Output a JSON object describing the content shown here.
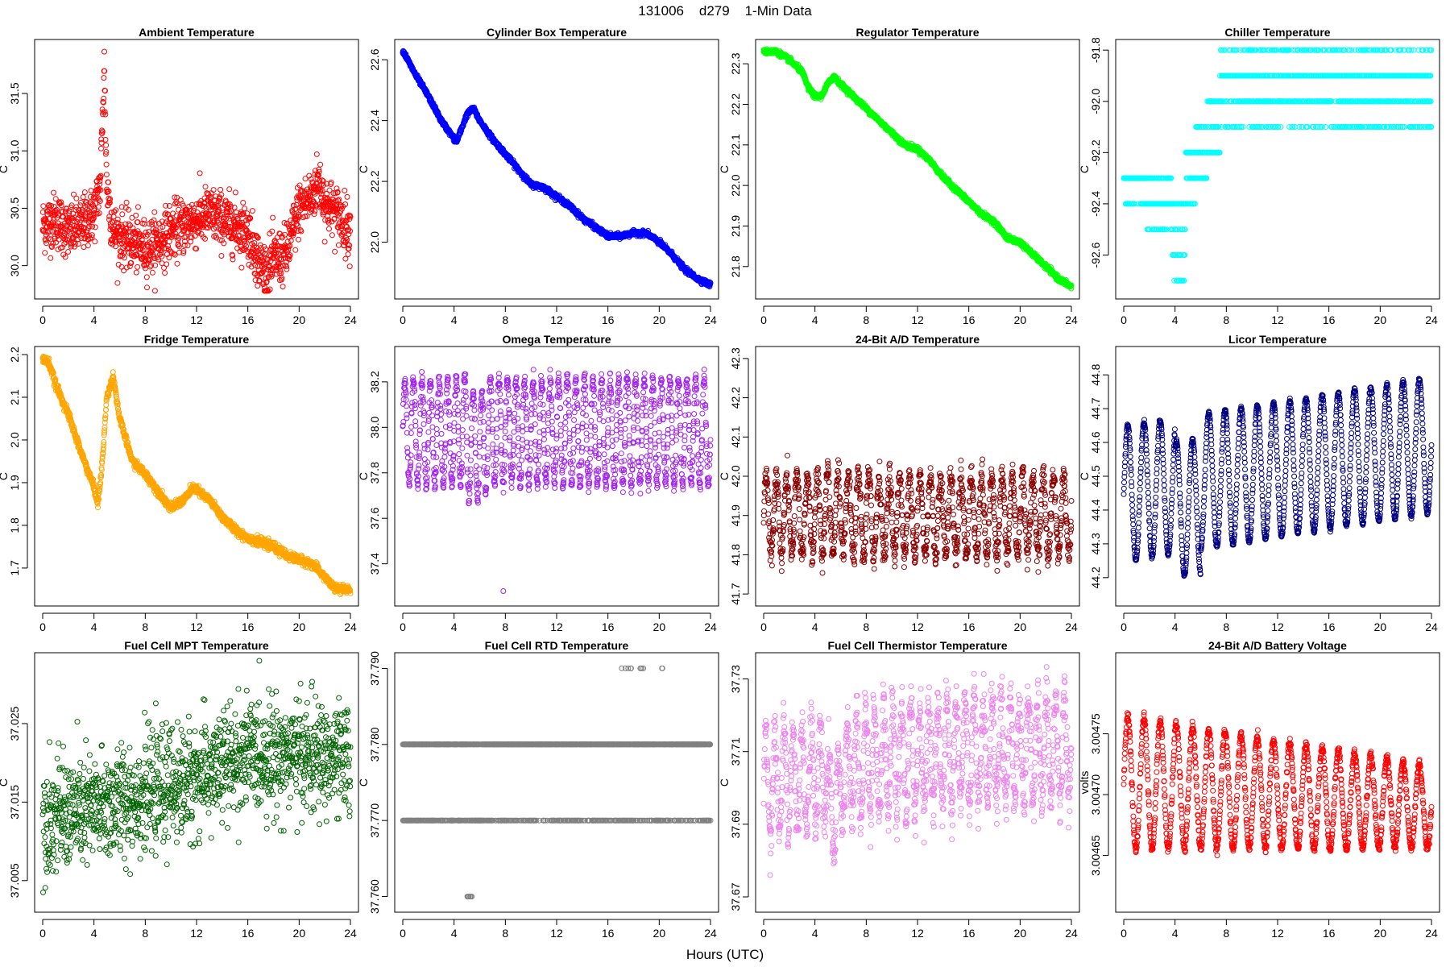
{
  "figure": {
    "title": "131006    d279    1-Min Data",
    "xlabel": "Hours (UTC)",
    "xticks": [
      0,
      4,
      8,
      12,
      16,
      20,
      24
    ],
    "xlim": [
      0,
      24
    ]
  },
  "chart_data": [
    {
      "type": "scatter",
      "title": "Ambient Temperature",
      "ylabel": "C",
      "color": "#ff0000",
      "ylim": [
        29.78,
        31.9
      ],
      "yticks": [
        30.0,
        30.5,
        31.0,
        31.5
      ],
      "ytick_labels": [
        "30.0",
        "30.5",
        "31.0",
        "31.5"
      ],
      "npoints": 1440,
      "x": [
        0,
        1,
        2,
        3,
        4,
        4.5,
        4.8,
        5,
        5.5,
        6,
        7,
        8,
        9,
        10,
        11,
        12,
        13,
        14,
        15,
        16,
        17,
        17.5,
        18,
        19,
        20,
        21,
        21.5,
        22,
        23,
        24
      ],
      "y": [
        30.35,
        30.4,
        30.3,
        30.35,
        30.45,
        30.7,
        31.75,
        30.7,
        30.3,
        30.25,
        30.2,
        30.15,
        30.2,
        30.3,
        30.35,
        30.4,
        30.45,
        30.4,
        30.35,
        30.3,
        30.0,
        29.95,
        30.05,
        30.1,
        30.5,
        30.6,
        30.75,
        30.55,
        30.45,
        30.3
      ],
      "noise": 0.12
    },
    {
      "type": "scatter",
      "title": "Cylinder Box Temperature",
      "ylabel": "C",
      "color": "#0000ff",
      "ylim": [
        21.84,
        22.64
      ],
      "yticks": [
        22.0,
        22.2,
        22.4,
        22.6
      ],
      "ytick_labels": [
        "22.0",
        "22.2",
        "22.4",
        "22.6"
      ],
      "npoints": 1440,
      "x": [
        0,
        1,
        2,
        3,
        4,
        4.2,
        5,
        5.5,
        6,
        7,
        8,
        9,
        10,
        11,
        12,
        13,
        14,
        15,
        16,
        17,
        18,
        19,
        20,
        21,
        22,
        23,
        24
      ],
      "y": [
        22.63,
        22.55,
        22.48,
        22.4,
        22.34,
        22.33,
        22.42,
        22.44,
        22.4,
        22.34,
        22.29,
        22.24,
        22.19,
        22.18,
        22.15,
        22.12,
        22.08,
        22.05,
        22.02,
        22.02,
        22.03,
        22.03,
        22.0,
        21.96,
        21.91,
        21.88,
        21.86
      ],
      "noise": 0.004
    },
    {
      "type": "scatter",
      "title": "Regulator Temperature",
      "ylabel": "C",
      "color": "#00ff00",
      "ylim": [
        21.74,
        22.34
      ],
      "yticks": [
        21.8,
        21.9,
        22.0,
        22.1,
        22.2,
        22.3
      ],
      "ytick_labels": [
        "21.8",
        "21.9",
        "22.0",
        "22.1",
        "22.2",
        "22.3"
      ],
      "npoints": 1440,
      "x": [
        0,
        1,
        2,
        3,
        3.5,
        4,
        4.5,
        5,
        5.5,
        6,
        7,
        8,
        9,
        10,
        11,
        12,
        13,
        14,
        15,
        16,
        17,
        18,
        19,
        20,
        21,
        22,
        23,
        24
      ],
      "y": [
        22.33,
        22.33,
        22.31,
        22.28,
        22.24,
        22.22,
        22.22,
        22.25,
        22.27,
        22.25,
        22.22,
        22.19,
        22.16,
        22.13,
        22.1,
        22.09,
        22.06,
        22.02,
        21.99,
        21.96,
        21.93,
        21.91,
        21.87,
        21.86,
        21.83,
        21.8,
        21.77,
        21.75
      ],
      "noise": 0.003
    },
    {
      "type": "scatter",
      "title": "Chiller Temperature",
      "ylabel": "C",
      "color": "#00ffff",
      "ylim": [
        -92.74,
        -91.79
      ],
      "yticks": [
        -92.6,
        -92.4,
        -92.2,
        -92.0,
        -91.8
      ],
      "ytick_labels": [
        "-92.6",
        "-92.4",
        "-92.2",
        "-92.0",
        "-91.8"
      ],
      "npoints": 1440,
      "levels": [
        {
          "from": 0,
          "to": 1.8,
          "values": [
            -92.3,
            -92.3,
            -92.3,
            -92.4
          ]
        },
        {
          "from": 1.8,
          "to": 3.8,
          "values": [
            -92.4,
            -92.4,
            -92.5,
            -92.3
          ]
        },
        {
          "from": 3.8,
          "to": 4.8,
          "values": [
            -92.6,
            -92.5,
            -92.4,
            -92.7
          ]
        },
        {
          "from": 4.8,
          "to": 5.6,
          "values": [
            -92.3,
            -92.4,
            -92.2
          ]
        },
        {
          "from": 5.6,
          "to": 6.5,
          "values": [
            -92.2,
            -92.3,
            -92.1
          ]
        },
        {
          "from": 6.5,
          "to": 7.5,
          "values": [
            -92.1,
            -92.0,
            -92.2
          ]
        },
        {
          "from": 7.5,
          "to": 24,
          "values": [
            -91.9,
            -92.0,
            -91.9,
            -92.0,
            -92.1,
            -91.8
          ]
        }
      ]
    },
    {
      "type": "scatter",
      "title": "Fridge Temperature",
      "ylabel": "C",
      "color": "#ffa500",
      "ylim": [
        1.63,
        2.2
      ],
      "yticks": [
        1.7,
        1.8,
        1.9,
        2.0,
        2.1,
        2.2
      ],
      "ytick_labels": [
        "1.7",
        "1.8",
        "1.9",
        "2.0",
        "2.1",
        "2.2"
      ],
      "npoints": 1440,
      "x": [
        0,
        0.5,
        1,
        2,
        3,
        4,
        4.3,
        4.6,
        5,
        5.5,
        6,
        7,
        8,
        9,
        10,
        11,
        11.8,
        12.5,
        13,
        14,
        15,
        16,
        17,
        18,
        19,
        20,
        21,
        22,
        22.5,
        23,
        24
      ],
      "y": [
        2.19,
        2.18,
        2.13,
        2.06,
        1.97,
        1.89,
        1.85,
        1.93,
        2.1,
        2.15,
        2.05,
        1.95,
        1.92,
        1.88,
        1.84,
        1.86,
        1.89,
        1.87,
        1.86,
        1.82,
        1.79,
        1.77,
        1.76,
        1.75,
        1.73,
        1.72,
        1.71,
        1.68,
        1.66,
        1.65,
        1.65
      ],
      "noise": 0.005
    },
    {
      "type": "scatter",
      "title": "Omega Temperature",
      "ylabel": "C",
      "color": "#a020f0",
      "ylim": [
        37.25,
        38.32
      ],
      "yticks": [
        37.4,
        37.6,
        37.8,
        38.0,
        38.2
      ],
      "ytick_labels": [
        "37.4",
        "37.6",
        "37.8",
        "38.0",
        "38.2"
      ],
      "npoints": 1440,
      "cycles": 36,
      "center": 37.98,
      "amp": 0.23,
      "noise": 0.02
    },
    {
      "type": "scatter",
      "title": "24-Bit A/D Temperature",
      "ylabel": "C",
      "color": "#8b0000",
      "ylim": [
        41.69,
        42.31
      ],
      "yticks": [
        41.7,
        41.8,
        41.9,
        42.0,
        42.1,
        42.2,
        42.3
      ],
      "ytick_labels": [
        "41.7",
        "41.8",
        "41.9",
        "42.0",
        "42.1",
        "42.2",
        "42.3"
      ],
      "npoints": 1440,
      "cycles": 30,
      "center": 41.9,
      "amp": 0.1,
      "noise": 0.02
    },
    {
      "type": "scatter",
      "title": "Licor Temperature",
      "ylabel": "C",
      "color": "#000080",
      "ylim": [
        44.14,
        44.86
      ],
      "yticks": [
        44.2,
        44.3,
        44.4,
        44.5,
        44.6,
        44.7,
        44.8
      ],
      "ytick_labels": [
        "44.2",
        "44.3",
        "44.4",
        "44.5",
        "44.6",
        "44.7",
        "44.8"
      ],
      "npoints": 1440,
      "cycles": 19,
      "center": 44.52,
      "amp": 0.2,
      "noise": 0.003
    },
    {
      "type": "scatter",
      "title": "Fuel Cell MPT Temperature",
      "ylabel": "C",
      "color": "#006400",
      "ylim": [
        37.002,
        37.033
      ],
      "yticks": [
        37.005,
        37.015,
        37.025
      ],
      "ytick_labels": [
        "37.005",
        "37.015",
        "37.025"
      ],
      "npoints": 1440,
      "x": [
        0,
        4,
        8,
        12,
        16,
        20,
        24
      ],
      "y": [
        37.013,
        37.014,
        37.016,
        37.018,
        37.021,
        37.021,
        37.02
      ],
      "noise": 0.0035
    },
    {
      "type": "scatter",
      "title": "Fuel Cell RTD Temperature",
      "ylabel": "C",
      "color": "#808080",
      "ylim": [
        37.759,
        37.791
      ],
      "yticks": [
        37.76,
        37.77,
        37.78,
        37.79
      ],
      "ytick_labels": [
        "37.760",
        "37.770",
        "37.780",
        "37.790"
      ],
      "npoints": 1440,
      "levels_note": "discrete values 37.760 / 37.770 / 37.780 / 37.790"
    },
    {
      "type": "scatter",
      "title": "Fuel Cell Thermistor Temperature",
      "ylabel": "C",
      "color": "#ee82ee",
      "ylim": [
        37.668,
        37.735
      ],
      "yticks": [
        37.67,
        37.69,
        37.71,
        37.73
      ],
      "ytick_labels": [
        "37.67",
        "37.69",
        "37.71",
        "37.73"
      ],
      "npoints": 1440,
      "cycles": 34,
      "center": 37.705,
      "amp": 0.014,
      "noise": 0.004
    },
    {
      "type": "scatter",
      "title": "24-Bit A/D Battery Voltage",
      "ylabel": "volts",
      "color": "#ff0000",
      "ylim": [
        3.00461,
        3.00481
      ],
      "yticks": [
        3.00465,
        3.0047,
        3.00475
      ],
      "ytick_labels": [
        "3.00465",
        "3.00470",
        "3.00475"
      ],
      "npoints": 1440,
      "cycles": 19,
      "center": 3.00471,
      "amp": 5.5e-05,
      "noise": 2e-06
    }
  ]
}
